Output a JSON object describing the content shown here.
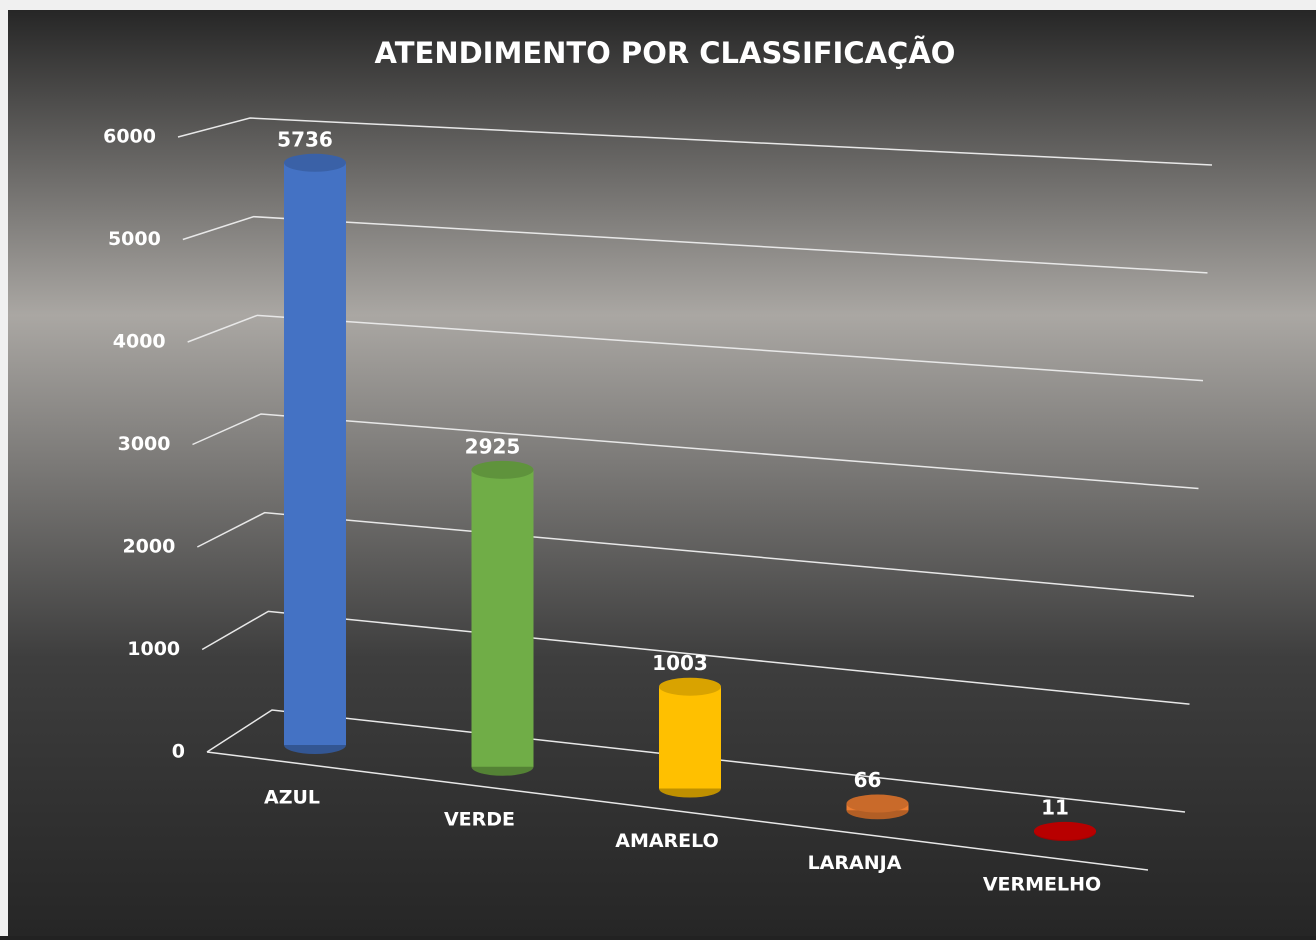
{
  "chart_data": {
    "type": "bar3d",
    "title": "ATENDIMENTO POR CLASSIFICAÇÃO",
    "categories": [
      "AZUL",
      "VERDE",
      "AMARELO",
      "LARANJA",
      "VERMELHO"
    ],
    "values": [
      5736,
      2925,
      1003,
      66,
      11
    ],
    "colors": [
      "#4472c4",
      "#70ad47",
      "#ffc000",
      "#ed7d31",
      "#d90000"
    ],
    "ylim": [
      0,
      6000
    ],
    "yticks": [
      0,
      1000,
      2000,
      3000,
      4000,
      5000,
      6000
    ],
    "grid": true
  }
}
